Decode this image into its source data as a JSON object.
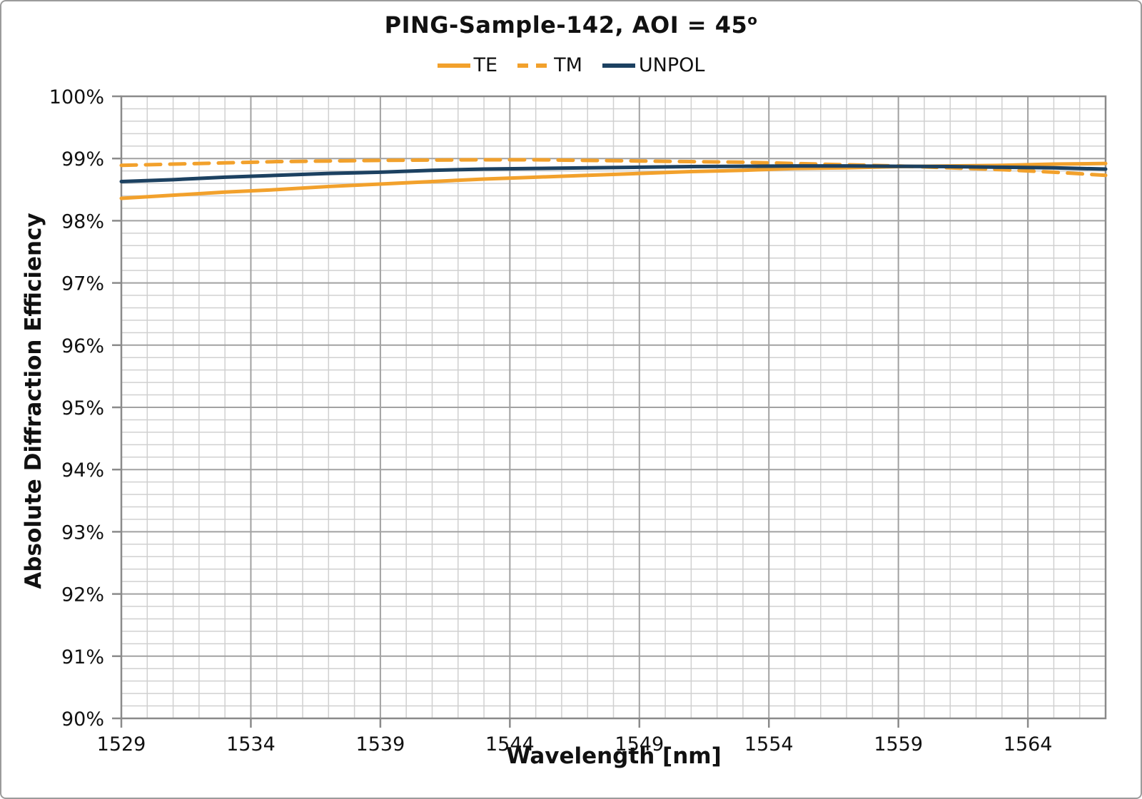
{
  "frame": {
    "background": "#ffffff",
    "border_color": "#9b9b9b"
  },
  "chart_data": {
    "type": "line",
    "title": "PING-Sample-142, AOI = 45",
    "title_superscript": "o",
    "xlabel": "Wavelength [nm]",
    "ylabel": "Absolute Diffraction Efficiency",
    "xlim": [
      1529,
      1567
    ],
    "ylim": [
      90,
      100
    ],
    "grid": true,
    "legend_position": "top-center",
    "x_tick_values": [
      1529,
      1534,
      1539,
      1544,
      1549,
      1554,
      1559,
      1564
    ],
    "x_tick_labels": [
      "1529",
      "1534",
      "1539",
      "1544",
      "1549",
      "1554",
      "1559",
      "1564"
    ],
    "x_minor_step": 1,
    "y_tick_values": [
      100,
      99,
      98,
      97,
      96,
      95,
      94,
      93,
      92,
      91,
      90
    ],
    "y_tick_labels": [
      "100%",
      "99%",
      "98%",
      "97%",
      "96%",
      "95%",
      "94%",
      "93%",
      "92%",
      "91%",
      "90%"
    ],
    "y_minor_step": 0.2,
    "colors": {
      "orange": "#F2A12C",
      "navy": "#1C4161",
      "major_grid": "#a2a2a2",
      "minor_grid": "#d0d0d0",
      "axis": "#8a8a8a",
      "text": "#111111"
    },
    "x": [
      1529,
      1531,
      1533,
      1535,
      1537,
      1539,
      1541,
      1543,
      1545,
      1547,
      1549,
      1551,
      1553,
      1555,
      1557,
      1559,
      1561,
      1563,
      1565,
      1567
    ],
    "series": [
      {
        "name": "TE",
        "color": "#F2A12C",
        "dash": "solid",
        "values": [
          98.36,
          98.41,
          98.46,
          98.5,
          98.55,
          98.59,
          98.63,
          98.67,
          98.7,
          98.73,
          98.76,
          98.79,
          98.81,
          98.84,
          98.85,
          98.87,
          98.88,
          98.89,
          98.91,
          98.92
        ]
      },
      {
        "name": "TM",
        "color": "#F2A12C",
        "dash": "dashed",
        "values": [
          98.89,
          98.91,
          98.93,
          98.95,
          98.96,
          98.97,
          98.975,
          98.98,
          98.98,
          98.97,
          98.96,
          98.95,
          98.94,
          98.92,
          98.9,
          98.88,
          98.85,
          98.82,
          98.78,
          98.73
        ]
      },
      {
        "name": "UNPOL",
        "color": "#1C4161",
        "dash": "solid",
        "values": [
          98.63,
          98.66,
          98.7,
          98.73,
          98.76,
          98.78,
          98.81,
          98.83,
          98.84,
          98.85,
          98.86,
          98.87,
          98.875,
          98.88,
          98.88,
          98.875,
          98.87,
          98.86,
          98.85,
          98.83
        ]
      }
    ]
  }
}
